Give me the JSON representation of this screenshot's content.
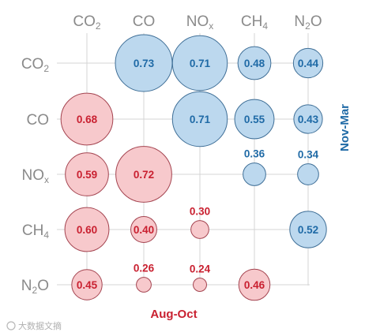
{
  "chart_data": {
    "type": "bubble-matrix",
    "variables": [
      "CO2",
      "CO",
      "NOx",
      "CH4",
      "N2O"
    ],
    "label_parts": [
      {
        "main": "CO",
        "sub": "2"
      },
      {
        "main": "CO",
        "sub": ""
      },
      {
        "main": "NO",
        "sub": "x"
      },
      {
        "main": "CH",
        "sub": "4"
      },
      {
        "main": "N",
        "sub": "2",
        "tail": "O"
      }
    ],
    "upper_label": "Nov-Mar",
    "lower_label": "Aug-Oct",
    "upper_triangle": [
      {
        "row": "CO2",
        "col": "CO",
        "value": 0.73
      },
      {
        "row": "CO2",
        "col": "NOx",
        "value": 0.71
      },
      {
        "row": "CO2",
        "col": "CH4",
        "value": 0.48
      },
      {
        "row": "CO2",
        "col": "N2O",
        "value": 0.44
      },
      {
        "row": "CO",
        "col": "NOx",
        "value": 0.71
      },
      {
        "row": "CO",
        "col": "CH4",
        "value": 0.55
      },
      {
        "row": "CO",
        "col": "N2O",
        "value": 0.43
      },
      {
        "row": "NOx",
        "col": "CH4",
        "value": 0.36
      },
      {
        "row": "NOx",
        "col": "N2O",
        "value": 0.34
      },
      {
        "row": "CH4",
        "col": "N2O",
        "value": 0.52
      }
    ],
    "lower_triangle": [
      {
        "row": "CO",
        "col": "CO2",
        "value": 0.68
      },
      {
        "row": "NOx",
        "col": "CO2",
        "value": 0.59
      },
      {
        "row": "NOx",
        "col": "CO",
        "value": 0.72
      },
      {
        "row": "CH4",
        "col": "CO2",
        "value": 0.6
      },
      {
        "row": "CH4",
        "col": "CO",
        "value": 0.4
      },
      {
        "row": "CH4",
        "col": "NOx",
        "value": 0.3
      },
      {
        "row": "N2O",
        "col": "CO2",
        "value": 0.45
      },
      {
        "row": "N2O",
        "col": "CO",
        "value": 0.26
      },
      {
        "row": "N2O",
        "col": "NOx",
        "value": 0.24
      },
      {
        "row": "N2O",
        "col": "CH4",
        "value": 0.46
      }
    ],
    "colors": {
      "upper_fill": "#bcd8ee",
      "upper_stroke": "#3f6f97",
      "upper_text": "#1f6aa6",
      "lower_fill": "#f7c9cc",
      "lower_stroke": "#a44450",
      "lower_text": "#c92030",
      "axis_text": "#8a8a8a",
      "grid": "#d4d4d4"
    }
  },
  "watermark": "大数据文摘"
}
